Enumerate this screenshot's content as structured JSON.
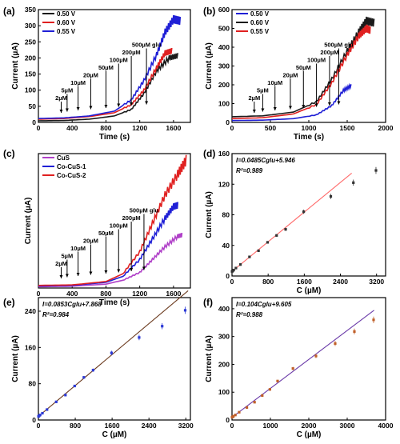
{
  "chart_data": [
    {
      "panel": "(a)",
      "type": "line",
      "xlabel": "Time (s)",
      "ylabel": "Current (µA)",
      "xlim": [
        0,
        1800
      ],
      "ylim": [
        0,
        350
      ],
      "xticks": [
        0,
        400,
        800,
        1200,
        1600
      ],
      "yticks": [
        0,
        50,
        100,
        150,
        200,
        250,
        300,
        350
      ],
      "legend": "top-left",
      "series": [
        {
          "name": "0.50 V",
          "color": "#1a1a1a",
          "points": [
            [
              0,
              5
            ],
            [
              300,
              6
            ],
            [
              600,
              10
            ],
            [
              900,
              20
            ],
            [
              1100,
              40
            ],
            [
              1250,
              90
            ],
            [
              1400,
              160
            ],
            [
              1550,
              200
            ],
            [
              1650,
              207
            ]
          ]
        },
        {
          "name": "0.60 V",
          "color": "#e02020",
          "points": [
            [
              0,
              10
            ],
            [
              300,
              12
            ],
            [
              600,
              18
            ],
            [
              900,
              30
            ],
            [
              1100,
              55
            ],
            [
              1250,
              100
            ],
            [
              1400,
              170
            ],
            [
              1500,
              215
            ],
            [
              1580,
              222
            ]
          ]
        },
        {
          "name": "0.55 V",
          "color": "#1f1fd6",
          "points": [
            [
              0,
              12
            ],
            [
              300,
              14
            ],
            [
              600,
              20
            ],
            [
              900,
              35
            ],
            [
              1100,
              70
            ],
            [
              1250,
              130
            ],
            [
              1400,
              210
            ],
            [
              1500,
              280
            ],
            [
              1600,
              320
            ],
            [
              1680,
              315
            ]
          ]
        }
      ],
      "annotations": [
        "2µM",
        "5µM",
        "10µM",
        "20µM",
        "50µM",
        "100µM",
        "200µM",
        "500µM glu"
      ]
    },
    {
      "panel": "(b)",
      "type": "line",
      "xlabel": "Time (s)",
      "ylabel": "Current (µA)",
      "xlim": [
        0,
        2000
      ],
      "ylim": [
        0,
        600
      ],
      "xticks": [
        0,
        500,
        1000,
        1500,
        2000
      ],
      "yticks": [
        0,
        100,
        200,
        300,
        400,
        500,
        600
      ],
      "legend": "top-left",
      "series": [
        {
          "name": "0.50 V",
          "color": "#1f1fd6",
          "points": [
            [
              0,
              10
            ],
            [
              400,
              12
            ],
            [
              800,
              20
            ],
            [
              1100,
              40
            ],
            [
              1300,
              90
            ],
            [
              1450,
              170
            ],
            [
              1550,
              195
            ]
          ]
        },
        {
          "name": "0.60 V",
          "color": "#1a1a1a",
          "points": [
            [
              0,
              30
            ],
            [
              400,
              35
            ],
            [
              800,
              55
            ],
            [
              1100,
              110
            ],
            [
              1300,
              230
            ],
            [
              1500,
              380
            ],
            [
              1650,
              480
            ],
            [
              1750,
              540
            ],
            [
              1850,
              530
            ]
          ]
        },
        {
          "name": "0.55 V",
          "color": "#e02020",
          "points": [
            [
              0,
              20
            ],
            [
              400,
              25
            ],
            [
              800,
              45
            ],
            [
              1100,
              95
            ],
            [
              1300,
              210
            ],
            [
              1500,
              360
            ],
            [
              1650,
              460
            ],
            [
              1750,
              500
            ],
            [
              1800,
              490
            ]
          ]
        }
      ],
      "annotations": [
        "2µM",
        "5µM",
        "10µM",
        "20µM",
        "50µM",
        "100µM",
        "200µM",
        "500µM glu"
      ]
    },
    {
      "panel": "(c)",
      "type": "line",
      "xlabel": "Time (s)",
      "ylabel": "Current (µA)",
      "xlim": [
        0,
        1800
      ],
      "ylim": [
        0,
        520
      ],
      "xticks": [
        0,
        400,
        800,
        1200,
        1600
      ],
      "yticks": [],
      "legend": "top-left",
      "series": [
        {
          "name": "CuS",
          "color": "#b040c8",
          "points": [
            [
              0,
              5
            ],
            [
              400,
              7
            ],
            [
              800,
              15
            ],
            [
              1000,
              30
            ],
            [
              1200,
              60
            ],
            [
              1350,
              110
            ],
            [
              1500,
              160
            ],
            [
              1650,
              200
            ],
            [
              1700,
              205
            ]
          ]
        },
        {
          "name": "Co-CuS-1",
          "color": "#1f1fd6",
          "points": [
            [
              0,
              8
            ],
            [
              400,
              10
            ],
            [
              800,
              22
            ],
            [
              1000,
              45
            ],
            [
              1200,
              110
            ],
            [
              1350,
              190
            ],
            [
              1500,
              270
            ],
            [
              1600,
              315
            ],
            [
              1650,
              320
            ]
          ]
        },
        {
          "name": "Co-CuS-2",
          "color": "#e02020",
          "points": [
            [
              0,
              10
            ],
            [
              400,
              12
            ],
            [
              800,
              25
            ],
            [
              1000,
              55
            ],
            [
              1200,
              140
            ],
            [
              1350,
              250
            ],
            [
              1500,
              360
            ],
            [
              1650,
              440
            ],
            [
              1750,
              495
            ]
          ]
        }
      ],
      "annotations": [
        "2µM",
        "5µM",
        "10µM",
        "20µM",
        "50µM",
        "100µM",
        "200µM",
        "500µM glu"
      ]
    },
    {
      "panel": "(d)",
      "type": "scatter",
      "xlabel": "C (µM)",
      "ylabel": "Current (µA)",
      "xlim": [
        0,
        3400
      ],
      "ylim": [
        0,
        160
      ],
      "xticks": [
        0,
        800,
        1600,
        2400,
        3200
      ],
      "yticks": [
        0,
        40,
        80,
        120,
        160
      ],
      "equation": "I=0.0485Cglu+5.946",
      "r2": "R²=0.989",
      "fit": {
        "slope": 0.0485,
        "intercept": 5.946,
        "x0": 0,
        "x1": 2650,
        "color": "#ff6a6a"
      },
      "marker_color": "#333333",
      "points": [
        [
          2,
          6
        ],
        [
          7,
          6.3
        ],
        [
          17,
          6.8
        ],
        [
          37,
          7.8
        ],
        [
          87,
          10.4
        ],
        [
          187,
          15
        ],
        [
          387,
          25
        ],
        [
          587,
          33
        ],
        [
          787,
          44
        ],
        [
          987,
          53
        ],
        [
          1187,
          61
        ],
        [
          1587,
          84
        ],
        [
          2187,
          104
        ],
        [
          2687,
          122
        ],
        [
          3187,
          138
        ]
      ]
    },
    {
      "panel": "(e)",
      "type": "scatter",
      "xlabel": "C (µM)",
      "ylabel": "Current (µA)",
      "xlim": [
        0,
        3300
      ],
      "ylim": [
        0,
        270
      ],
      "xticks": [
        0,
        800,
        1600,
        2400,
        3200
      ],
      "yticks": [
        0,
        80,
        160,
        240
      ],
      "equation": "I=0.0853Cglu+7.868",
      "r2": "R²=0.984",
      "fit": {
        "slope": 0.0853,
        "intercept": 7.868,
        "x0": 0,
        "x1": 3250,
        "color": "#6b3a1e"
      },
      "marker_color": "#2c3ad6",
      "points": [
        [
          2,
          8
        ],
        [
          7,
          8.5
        ],
        [
          17,
          9.3
        ],
        [
          37,
          11
        ],
        [
          87,
          15
        ],
        [
          187,
          23
        ],
        [
          387,
          40
        ],
        [
          587,
          55
        ],
        [
          787,
          75
        ],
        [
          987,
          94
        ],
        [
          1187,
          110
        ],
        [
          1587,
          148
        ],
        [
          2187,
          182
        ],
        [
          2687,
          207
        ],
        [
          3187,
          242
        ]
      ]
    },
    {
      "panel": "(f)",
      "type": "scatter",
      "xlabel": "C (µM)",
      "ylabel": "Current (µA)",
      "xlim": [
        0,
        4000
      ],
      "ylim": [
        0,
        440
      ],
      "xticks": [
        0,
        1000,
        2000,
        3000,
        4000
      ],
      "yticks": [
        0,
        100,
        200,
        300,
        400
      ],
      "equation": "I=0.104Cglu+9.605",
      "r2": "R²=0.988",
      "fit": {
        "slope": 0.104,
        "intercept": 9.605,
        "x0": 0,
        "x1": 3700,
        "color": "#6a3aa8"
      },
      "marker_color": "#c0602a",
      "points": [
        [
          2,
          10
        ],
        [
          7,
          10.5
        ],
        [
          17,
          11.5
        ],
        [
          37,
          13.5
        ],
        [
          87,
          18
        ],
        [
          187,
          28
        ],
        [
          387,
          45
        ],
        [
          587,
          64
        ],
        [
          787,
          88
        ],
        [
          987,
          110
        ],
        [
          1187,
          140
        ],
        [
          1587,
          185
        ],
        [
          2187,
          230
        ],
        [
          2687,
          275
        ],
        [
          3187,
          318
        ],
        [
          3687,
          360
        ]
      ]
    }
  ]
}
